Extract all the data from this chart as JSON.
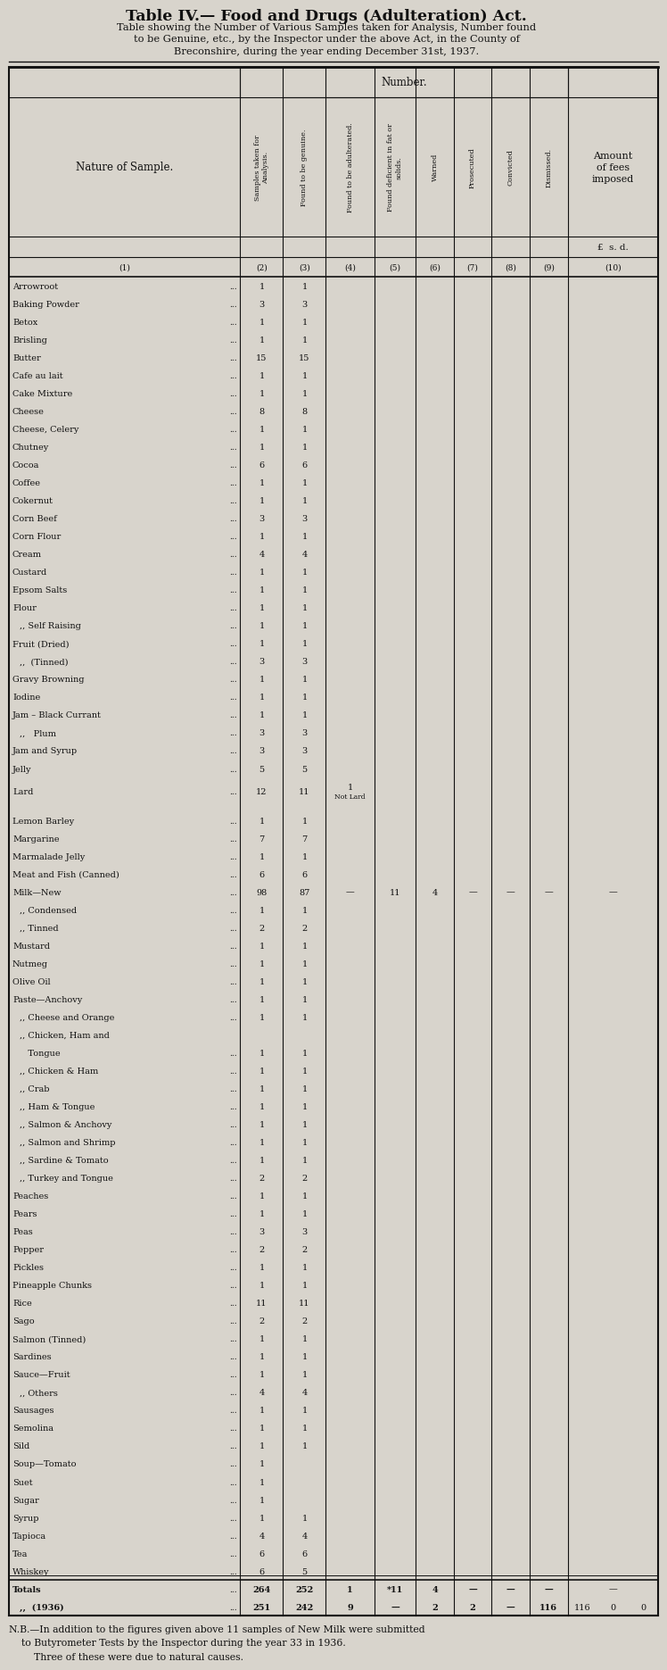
{
  "title": "Table IV.— Food and Drugs (Adulteration) Act.",
  "subtitle1": "Table showing the Number of Various Samples taken for Analysis, Number found",
  "subtitle2": "to be Genuine, etc., by the Inspector under the above Act, in the County of",
  "subtitle3": "Breconshire, during the year ending December 31st, 1937.",
  "col_header_labels": [
    "Samples taken for\nAnalysis.",
    "Found to be genuine.",
    "Found to be adulterated.",
    "Found deficient in fat or\nsolids.",
    "Warned",
    "Prosecuted",
    "Convicted",
    "Dismissed."
  ],
  "rows": [
    [
      "Arrowroot",
      "...",
      "1",
      "1",
      "",
      "",
      "",
      "",
      "",
      "",
      ""
    ],
    [
      "Baking Powder",
      "...",
      "3",
      "3",
      "",
      "",
      "",
      "",
      "",
      "",
      ""
    ],
    [
      "Betox",
      "...",
      "1",
      "1",
      "",
      "",
      "",
      "",
      "",
      "",
      ""
    ],
    [
      "Brisling",
      "...",
      "1",
      "1",
      "",
      "",
      "",
      "",
      "",
      "",
      ""
    ],
    [
      "Butter",
      "...",
      "15",
      "15",
      "",
      "",
      "",
      "",
      "",
      "",
      ""
    ],
    [
      "Cafe au lait",
      "...",
      "1",
      "1",
      "",
      "",
      "",
      "",
      "",
      "",
      ""
    ],
    [
      "Cake Mixture",
      "...",
      "1",
      "1",
      "",
      "",
      "",
      "",
      "",
      "",
      ""
    ],
    [
      "Cheese",
      "...",
      "8",
      "8",
      "",
      "",
      "",
      "",
      "",
      "",
      ""
    ],
    [
      "Cheese, Celery",
      "...",
      "1",
      "1",
      "",
      "",
      "",
      "",
      "",
      "",
      ""
    ],
    [
      "Chutney",
      "...",
      "1",
      "1",
      "",
      "",
      "",
      "",
      "",
      "",
      ""
    ],
    [
      "Cocoa",
      "...",
      "6",
      "6",
      "",
      "",
      "",
      "",
      "",
      "",
      ""
    ],
    [
      "Coffee",
      "...",
      "1",
      "1",
      "",
      "",
      "",
      "",
      "",
      "",
      ""
    ],
    [
      "Cokernut",
      "...",
      "1",
      "1",
      "",
      "",
      "",
      "",
      "",
      "",
      ""
    ],
    [
      "Corn Beef",
      "...",
      "3",
      "3",
      "",
      "",
      "",
      "",
      "",
      "",
      ""
    ],
    [
      "Corn Flour",
      "...",
      "1",
      "1",
      "",
      "",
      "",
      "",
      "",
      "",
      ""
    ],
    [
      "Cream",
      "...",
      "4",
      "4",
      "",
      "",
      "",
      "",
      "",
      "",
      ""
    ],
    [
      "Custard",
      "...",
      "1",
      "1",
      "",
      "",
      "",
      "",
      "",
      "",
      ""
    ],
    [
      "Epsom Salts",
      "...",
      "1",
      "1",
      "",
      "",
      "",
      "",
      "",
      "",
      ""
    ],
    [
      "Flour",
      "...",
      "1",
      "1",
      "",
      "",
      "",
      "",
      "",
      "",
      ""
    ],
    [
      ",, Self Raising",
      "...",
      "1",
      "1",
      "",
      "",
      "",
      "",
      "",
      "",
      ""
    ],
    [
      "Fruit (Dried)",
      "...",
      "1",
      "1",
      "",
      "",
      "",
      "",
      "",
      "",
      ""
    ],
    [
      ",,  (Tinned)",
      "...",
      "3",
      "3",
      "",
      "",
      "",
      "",
      "",
      "",
      ""
    ],
    [
      "Gravy Browning",
      "...",
      "1",
      "1",
      "",
      "",
      "",
      "",
      "",
      "",
      ""
    ],
    [
      "Iodine",
      "...",
      "1",
      "1",
      "",
      "",
      "",
      "",
      "",
      "",
      ""
    ],
    [
      "Jam – Black Currant",
      "...",
      "1",
      "1",
      "",
      "",
      "",
      "",
      "",
      "",
      ""
    ],
    [
      ",,   Plum",
      "...",
      "3",
      "3",
      "",
      "",
      "",
      "",
      "",
      "",
      ""
    ],
    [
      "Jam and Syrup",
      "...",
      "3",
      "3",
      "",
      "",
      "",
      "",
      "",
      "",
      ""
    ],
    [
      "Jelly",
      "...",
      "5",
      "5",
      "",
      "",
      "",
      "",
      "",
      "",
      ""
    ],
    [
      "Lard",
      "...",
      "12",
      "11",
      "1",
      "",
      "",
      "",
      "",
      "",
      ""
    ],
    [
      "",
      "",
      "",
      "",
      "",
      "",
      "",
      "",
      "",
      "",
      ""
    ],
    [
      "Lemon Barley",
      "...",
      "1",
      "1",
      "",
      "",
      "",
      "",
      "",
      "",
      ""
    ],
    [
      "Margarine",
      "...",
      "7",
      "7",
      "",
      "",
      "",
      "",
      "",
      "",
      ""
    ],
    [
      "Marmalade Jelly",
      "...",
      "1",
      "1",
      "",
      "",
      "",
      "",
      "",
      "",
      ""
    ],
    [
      "Meat and Fish (Canned)",
      "...",
      "6",
      "6",
      "",
      "",
      "",
      "",
      "",
      "",
      ""
    ],
    [
      "Milk—New",
      "...",
      "98",
      "87",
      "—",
      "11",
      "4",
      "—",
      "—",
      "—",
      "—"
    ],
    [
      ",, Condensed",
      "...",
      "1",
      "1",
      "",
      "",
      "",
      "",
      "",
      "",
      ""
    ],
    [
      ",, Tinned",
      "...",
      "2",
      "2",
      "",
      "",
      "",
      "",
      "",
      "",
      ""
    ],
    [
      "Mustard",
      "...",
      "1",
      "1",
      "",
      "",
      "",
      "",
      "",
      "",
      ""
    ],
    [
      "Nutmeg",
      "...",
      "1",
      "1",
      "",
      "",
      "",
      "",
      "",
      "",
      ""
    ],
    [
      "Olive Oil",
      "...",
      "1",
      "1",
      "",
      "",
      "",
      "",
      "",
      "",
      ""
    ],
    [
      "Paste—Anchovy",
      "...",
      "1",
      "1",
      "",
      "",
      "",
      "",
      "",
      "",
      ""
    ],
    [
      ",, Cheese and Orange",
      "...",
      "1",
      "1",
      "",
      "",
      "",
      "",
      "",
      "",
      ""
    ],
    [
      ",, Chicken, Ham and",
      "",
      "",
      "",
      "",
      "",
      "",
      "",
      "",
      "",
      ""
    ],
    [
      "   Tongue",
      "...",
      "1",
      "1",
      "",
      "",
      "",
      "",
      "",
      "",
      ""
    ],
    [
      ",, Chicken & Ham",
      "...",
      "1",
      "1",
      "",
      "",
      "",
      "",
      "",
      "",
      ""
    ],
    [
      ",, Crab",
      "...",
      "1",
      "1",
      "",
      "",
      "",
      "",
      "",
      "",
      ""
    ],
    [
      ",, Ham & Tongue",
      "...",
      "1",
      "1",
      "",
      "",
      "",
      "",
      "",
      "",
      ""
    ],
    [
      ",, Salmon & Anchovy",
      "...",
      "1",
      "1",
      "",
      "",
      "",
      "",
      "",
      "",
      ""
    ],
    [
      ",, Salmon and Shrimp",
      "...",
      "1",
      "1",
      "",
      "",
      "",
      "",
      "",
      "",
      ""
    ],
    [
      ",, Sardine & Tomato",
      "...",
      "1",
      "1",
      "",
      "",
      "",
      "",
      "",
      "",
      ""
    ],
    [
      ",, Turkey and Tongue",
      "...",
      "2",
      "2",
      "",
      "",
      "",
      "",
      "",
      "",
      ""
    ],
    [
      "Peaches",
      "...",
      "1",
      "1",
      "",
      "",
      "",
      "",
      "",
      "",
      ""
    ],
    [
      "Pears",
      "...",
      "1",
      "1",
      "",
      "",
      "",
      "",
      "",
      "",
      ""
    ],
    [
      "Peas",
      "...",
      "3",
      "3",
      "",
      "",
      "",
      "",
      "",
      "",
      ""
    ],
    [
      "Pepper",
      "...",
      "2",
      "2",
      "",
      "",
      "",
      "",
      "",
      "",
      ""
    ],
    [
      "Pickles",
      "...",
      "1",
      "1",
      "",
      "",
      "",
      "",
      "",
      "",
      ""
    ],
    [
      "Pineapple Chunks",
      "...",
      "1",
      "1",
      "",
      "",
      "",
      "",
      "",
      "",
      ""
    ],
    [
      "Rice",
      "...",
      "11",
      "11",
      "",
      "",
      "",
      "",
      "",
      "",
      ""
    ],
    [
      "Sago",
      "...",
      "2",
      "2",
      "",
      "",
      "",
      "",
      "",
      "",
      ""
    ],
    [
      "Salmon (Tinned)",
      "...",
      "1",
      "1",
      "",
      "",
      "",
      "",
      "",
      "",
      ""
    ],
    [
      "Sardines",
      "...",
      "1",
      "1",
      "",
      "",
      "",
      "",
      "",
      "",
      ""
    ],
    [
      "Sauce—Fruit",
      "...",
      "1",
      "1",
      "",
      "",
      "",
      "",
      "",
      "",
      ""
    ],
    [
      ",, Others",
      "...",
      "4",
      "4",
      "",
      "",
      "",
      "",
      "",
      "",
      ""
    ],
    [
      "Sausages",
      "...",
      "1",
      "1",
      "",
      "",
      "",
      "",
      "",
      "",
      ""
    ],
    [
      "Semolina",
      "...",
      "1",
      "1",
      "",
      "",
      "",
      "",
      "",
      "",
      ""
    ],
    [
      "Sild",
      "...",
      "1",
      "1",
      "",
      "",
      "",
      "",
      "",
      "",
      ""
    ],
    [
      "Soup—Tomato",
      "...",
      "1",
      "",
      "",
      "",
      "",
      "",
      "",
      "",
      ""
    ],
    [
      "Suet",
      "...",
      "1",
      "",
      "",
      "",
      "",
      "",
      "",
      "",
      ""
    ],
    [
      "Sugar",
      "...",
      "1",
      "",
      "",
      "",
      "",
      "",
      "",
      "",
      ""
    ],
    [
      "Syrup",
      "...",
      "1",
      "1",
      "",
      "",
      "",
      "",
      "",
      "",
      ""
    ],
    [
      "Tapioca",
      "...",
      "4",
      "4",
      "",
      "",
      "",
      "",
      "",
      "",
      ""
    ],
    [
      "Tea",
      "...",
      "6",
      "6",
      "",
      "",
      "",
      "",
      "",
      "",
      ""
    ],
    [
      "Whiskey",
      "...",
      "6",
      "5",
      "",
      "",
      "",
      "",
      "",
      "",
      ""
    ],
    [
      "Totals",
      "...",
      "264",
      "252",
      "1",
      "*11",
      "4",
      "—",
      "—",
      "—",
      "—"
    ],
    [
      ",,  (1936)",
      "...",
      "251",
      "242",
      "9",
      "—",
      "2",
      "2",
      "—",
      "116",
      "0"
    ]
  ],
  "lard_note": "Not Lard",
  "footnote": "N.B.—In addition to the figures given above 11 samples of New Milk were submitted\n    to Butyrometer Tests by the Inspector during the year 33 in 1936.\n        Three of these were due to natural causes.",
  "bg_color": "#d8d4cc",
  "text_color": "#111111",
  "line_color": "#111111",
  "fees_col_note": "£  s. d."
}
